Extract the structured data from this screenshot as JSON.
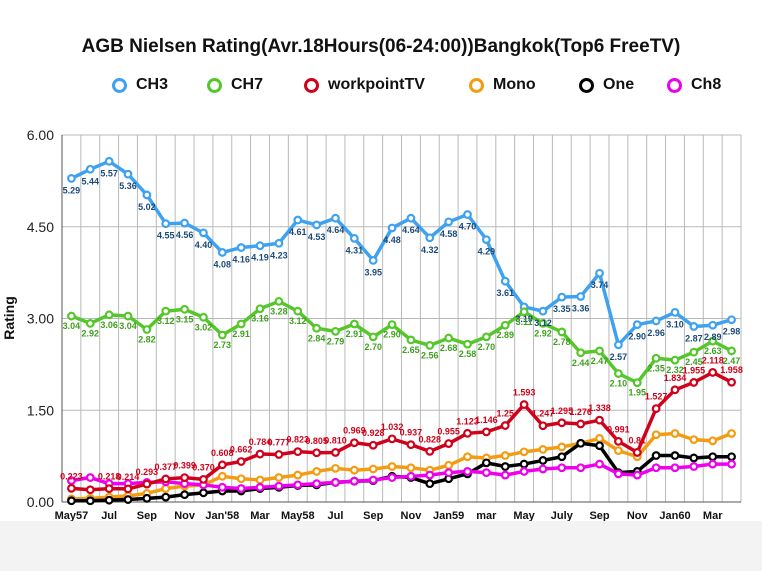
{
  "chart_data": {
    "type": "line",
    "title": "AGB Nielsen Rating(Avr.18Hours(06-24:00))Bangkok(Top6 FreeTV)",
    "ylabel": "Rating",
    "xlabel": "",
    "ylim": [
      0,
      6
    ],
    "yticks": [
      "0.00",
      "1.50",
      "3.00",
      "4.50",
      "6.00"
    ],
    "grid": true,
    "legend_position": "top",
    "x_tick_labels": [
      "May57",
      "Jul",
      "Sep",
      "Nov",
      "Jan'58",
      "Mar",
      "May58",
      "Jul",
      "Sep",
      "Nov",
      "Jan59",
      "mar",
      "May",
      "July",
      "Sep",
      "Nov",
      "Jan60",
      "Mar"
    ],
    "series": [
      {
        "name": "CH3",
        "color": "#3fa2f0",
        "label_color": "#1a4a7a",
        "values": [
          5.29,
          5.44,
          5.57,
          5.36,
          5.02,
          4.55,
          4.56,
          4.4,
          4.08,
          4.16,
          4.19,
          4.23,
          4.61,
          4.53,
          4.64,
          4.31,
          3.95,
          4.48,
          4.64,
          4.32,
          4.58,
          4.7,
          4.29,
          3.61,
          3.19,
          3.12,
          3.35,
          3.36,
          3.74,
          2.57,
          2.9,
          2.96,
          3.1,
          2.87,
          2.89,
          2.98
        ],
        "labels": [
          "5.29",
          "5.44",
          "5.57",
          "5.36",
          "5.02",
          "4.55",
          "4.56",
          "4.40",
          "4.08",
          "4.16",
          "4.19",
          "4.23",
          "4.61",
          "4.53",
          "4.64",
          "4.31",
          "3.95",
          "4.48",
          "4.64",
          "4.32",
          "4.58",
          "4.70",
          "4.29",
          "3.61",
          "3.19",
          "3.12",
          "3.35",
          "3.36",
          "3.74",
          "2.57",
          "2.90",
          "2.96",
          "3.10",
          "2.87",
          "2.89",
          "2.98"
        ]
      },
      {
        "name": "CH7",
        "color": "#55c72b",
        "label_color": "#3fa01e",
        "values": [
          3.04,
          2.92,
          3.06,
          3.04,
          2.82,
          3.12,
          3.15,
          3.02,
          2.73,
          2.91,
          3.16,
          3.28,
          3.12,
          2.84,
          2.79,
          2.91,
          2.7,
          2.9,
          2.65,
          2.56,
          2.68,
          2.58,
          2.7,
          2.89,
          3.11,
          2.92,
          2.78,
          2.44,
          2.47,
          2.1,
          1.95,
          2.35,
          2.32,
          2.45,
          2.63,
          2.47
        ],
        "labels": [
          "3.04",
          "2.92",
          "3.06",
          "3.04",
          "2.82",
          "3.12",
          "3.15",
          "3.02",
          "2.73",
          "2.91",
          "3.16",
          "3.28",
          "3.12",
          "2.84",
          "2.79",
          "2.91",
          "2.70",
          "2.90",
          "2.65",
          "2.56",
          "2.68",
          "2.58",
          "2.70",
          "2.89",
          "3.11",
          "2.92",
          "2.78",
          "2.44",
          "2.47",
          "2.10",
          "1.95",
          "2.35",
          "2.32",
          "2.45",
          "2.63",
          "2.47"
        ]
      },
      {
        "name": "workpointTV",
        "color": "#d0021b",
        "label_color": "#d0021b",
        "values": [
          0.223,
          0.2,
          0.218,
          0.214,
          0.293,
          0.377,
          0.399,
          0.37,
          0.608,
          0.662,
          0.784,
          0.777,
          0.823,
          0.805,
          0.81,
          0.969,
          0.928,
          1.032,
          0.937,
          0.828,
          0.955,
          1.123,
          1.146,
          1.25,
          1.593,
          1.247,
          1.295,
          1.276,
          1.338,
          0.991,
          0.81,
          1.527,
          1.834,
          1.955,
          2.118,
          1.958
        ],
        "labels": [
          "0.223",
          "",
          "0.218",
          "0.214",
          "0.293",
          "0.377",
          "0.399",
          "0.370",
          "0.608",
          "0.662",
          "0.784",
          "0.777",
          "0.823",
          "0.805",
          "0.810",
          "0.969",
          "0.928",
          "1.032",
          "0.937",
          "0.828",
          "0.955",
          "1.123",
          "1.146",
          "1.25",
          "1.593",
          "1.247",
          "1.295",
          "1.276",
          "1.338",
          "0.991",
          "0.81",
          "1.527",
          "1.834",
          "1.955",
          "2.118",
          "1.958"
        ]
      },
      {
        "name": "Mono",
        "color": "#f39c12",
        "label_color": "#f39c12",
        "values": [
          0.05,
          0.06,
          0.08,
          0.1,
          0.14,
          0.22,
          0.26,
          0.28,
          0.42,
          0.38,
          0.36,
          0.4,
          0.44,
          0.5,
          0.55,
          0.52,
          0.54,
          0.58,
          0.56,
          0.52,
          0.6,
          0.74,
          0.72,
          0.76,
          0.82,
          0.86,
          0.9,
          0.96,
          1.04,
          0.84,
          0.74,
          1.1,
          1.12,
          1.02,
          1.0,
          1.12
        ],
        "labels": []
      },
      {
        "name": "One",
        "color": "#000000",
        "label_color": "#000000",
        "values": [
          0.02,
          0.02,
          0.03,
          0.04,
          0.06,
          0.08,
          0.12,
          0.15,
          0.18,
          0.18,
          0.22,
          0.24,
          0.27,
          0.28,
          0.32,
          0.34,
          0.35,
          0.42,
          0.4,
          0.3,
          0.38,
          0.46,
          0.64,
          0.58,
          0.62,
          0.68,
          0.74,
          0.96,
          0.92,
          0.48,
          0.5,
          0.76,
          0.76,
          0.72,
          0.74,
          0.74
        ],
        "labels": []
      },
      {
        "name": "Ch8",
        "color": "#ee00ee",
        "label_color": "#ee00ee",
        "values": [
          0.35,
          0.4,
          0.3,
          0.3,
          0.32,
          0.33,
          0.3,
          0.28,
          0.24,
          0.22,
          0.24,
          0.26,
          0.28,
          0.3,
          0.32,
          0.34,
          0.36,
          0.4,
          0.42,
          0.44,
          0.48,
          0.5,
          0.48,
          0.44,
          0.5,
          0.54,
          0.56,
          0.56,
          0.62,
          0.46,
          0.44,
          0.56,
          0.56,
          0.58,
          0.62,
          0.62
        ],
        "labels": []
      }
    ]
  }
}
